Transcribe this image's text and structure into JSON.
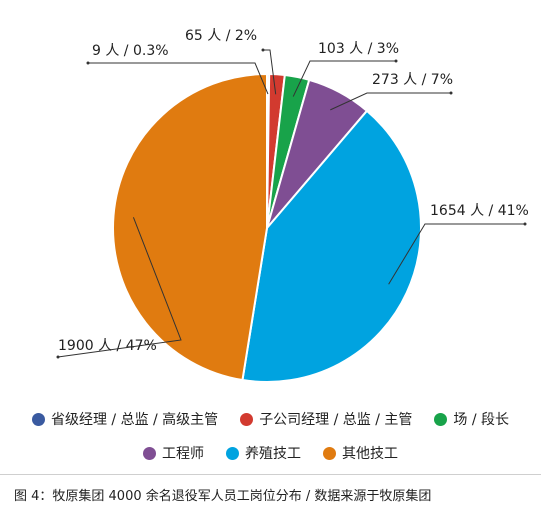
{
  "chart_data": {
    "type": "pie",
    "categories": [
      "省级经理 / 总监 / 高级主管",
      "子公司经理 / 总监 / 主管",
      "场 / 段长",
      "工程师",
      "养殖技工",
      "其他技工"
    ],
    "values": [
      9,
      65,
      103,
      273,
      1654,
      1900
    ],
    "percent_labels": [
      "0.3%",
      "2%",
      "3%",
      "7%",
      "41%",
      "47%"
    ],
    "data_labels": [
      "9 人 / 0.3%",
      "65 人 / 2%",
      "103 人 / 3%",
      "273 人 / 7%",
      "1654 人 / 41%",
      "1900 人 / 47%"
    ],
    "colors": [
      "#3a5aa0",
      "#d23a2f",
      "#18a34a",
      "#7f4e93",
      "#00a3e0",
      "#e07b10"
    ],
    "legend_position": "bottom",
    "caption": "图 4：牧原集团 4000 余名退役军人员工岗位分布 / 数据来源于牧原集团"
  }
}
